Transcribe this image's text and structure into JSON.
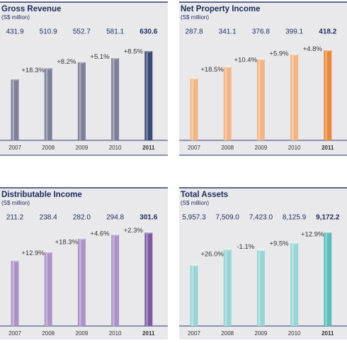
{
  "chart_data": [
    {
      "type": "bar",
      "title": "Gross Revenue",
      "subtitle": "(S$ million)",
      "categories": [
        "2007",
        "2008",
        "2009",
        "2010",
        "2011"
      ],
      "values": [
        431.9,
        510.9,
        552.7,
        581.1,
        630.6
      ],
      "annotations": [
        "+18.3%",
        "+8.2%",
        "+5.1%",
        "+8.5%"
      ],
      "colors": [
        "#7e8099",
        "#7e8099",
        "#7e8099",
        "#7e8099",
        "#3a4a74"
      ],
      "ylim": [
        0,
        700
      ]
    },
    {
      "type": "bar",
      "title": "Net Property Income",
      "subtitle": "(S$ million)",
      "categories": [
        "2007",
        "2008",
        "2009",
        "2010",
        "2011"
      ],
      "values": [
        287.8,
        341.1,
        376.8,
        399.1,
        418.2
      ],
      "annotations": [
        "+18.5%",
        "+10.4%",
        "+5.9%",
        "+4.8%"
      ],
      "colors": [
        "#f2b585",
        "#f2b585",
        "#f2b585",
        "#f2b585",
        "#ea883a"
      ],
      "ylim": [
        0,
        460
      ]
    },
    {
      "type": "bar",
      "title": "Distributable Income",
      "subtitle": "(S$ million)",
      "categories": [
        "2007",
        "2008",
        "2009",
        "2010",
        "2011"
      ],
      "values": [
        211.2,
        238.4,
        282.0,
        294.8,
        301.6
      ],
      "value_labels": [
        "211.2",
        "238.4",
        "282.0",
        "294.8",
        "301.6"
      ],
      "annotations": [
        "+12.9%",
        "+18.3%",
        "+4.6%",
        "+2.3%"
      ],
      "colors": [
        "#ab93c6",
        "#ab93c6",
        "#ab93c6",
        "#ab93c6",
        "#7b5aa2"
      ],
      "ylim": [
        0,
        320
      ]
    },
    {
      "type": "bar",
      "title": "Total Assets",
      "subtitle": "(S$ million)",
      "categories": [
        "2007",
        "2008",
        "2009",
        "2010",
        "2011"
      ],
      "values": [
        5957.3,
        7509.0,
        7423.0,
        8125.9,
        9172.2
      ],
      "value_labels": [
        "5,957.3",
        "7,509.0",
        "7,423.0",
        "8,125.9",
        "9,172.2"
      ],
      "annotations": [
        "+26.0%",
        "-1.1%",
        "+9.5%",
        "+12.9%"
      ],
      "colors": [
        "#98d5d5",
        "#98d5d5",
        "#98d5d5",
        "#98d5d5",
        "#5bbdbc"
      ],
      "ylim": [
        0,
        9700
      ]
    }
  ]
}
